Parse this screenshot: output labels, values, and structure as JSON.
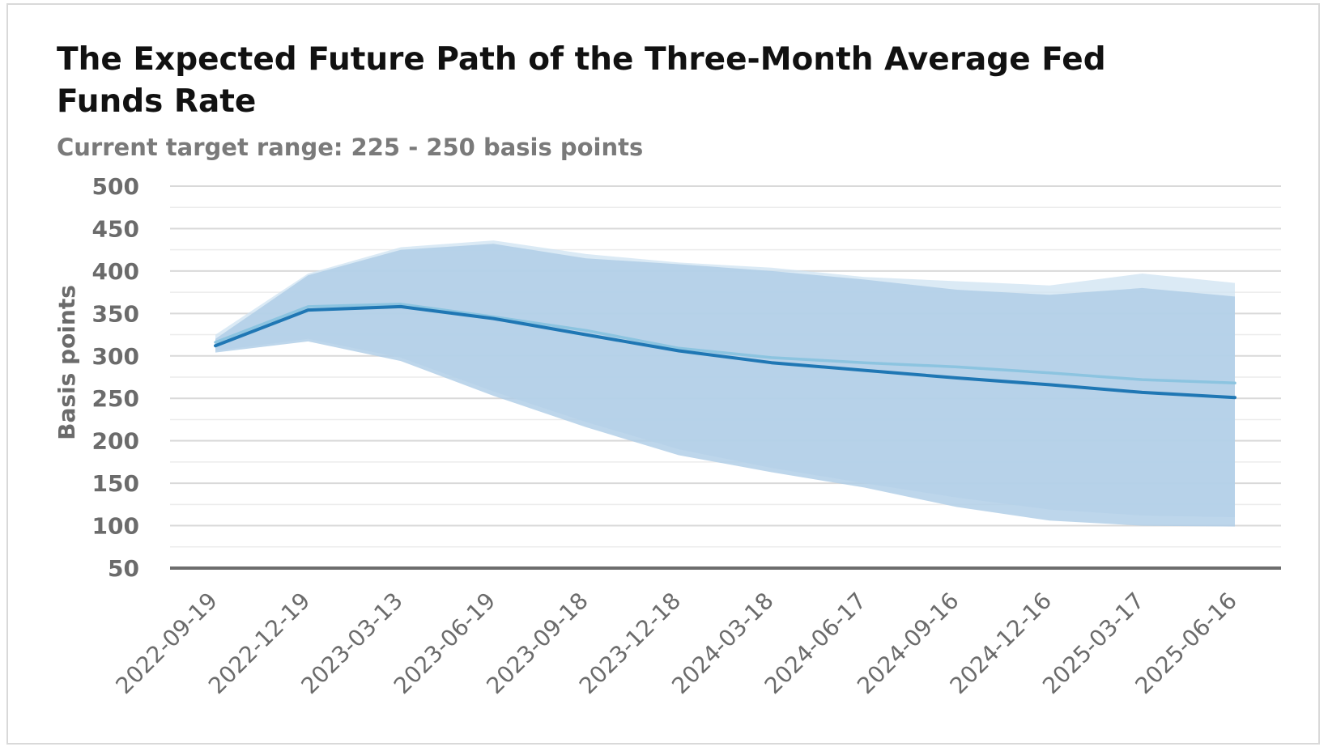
{
  "chart_data": {
    "type": "line",
    "title": "The Expected Future Path of the Three-Month Average Fed Funds Rate",
    "subtitle": "Current target range: 225 - 250 basis points",
    "ylabel": "Basis points",
    "xlabel": "",
    "ylim": [
      50,
      500
    ],
    "yticks": [
      50,
      100,
      150,
      200,
      250,
      300,
      350,
      400,
      450,
      500
    ],
    "grid": true,
    "legend": "none",
    "x": [
      "2022-09-19",
      "2022-12-19",
      "2023-03-13",
      "2023-06-19",
      "2023-09-18",
      "2023-12-18",
      "2024-03-18",
      "2024-06-17",
      "2024-09-16",
      "2024-12-16",
      "2025-03-17",
      "2025-06-16"
    ],
    "series": [
      {
        "values": [
          312,
          354,
          358,
          344,
          325,
          306,
          292,
          283,
          274,
          266,
          257,
          251
        ],
        "band_low": [
          304,
          317,
          294,
          253,
          216,
          183,
          163,
          145,
          122,
          106,
          100,
          99
        ],
        "band_high": [
          320,
          395,
          425,
          432,
          415,
          408,
          400,
          390,
          378,
          372,
          380,
          370
        ],
        "color": "#1f77b4"
      },
      {
        "values": [
          316,
          358,
          361,
          346,
          330,
          309,
          298,
          292,
          287,
          280,
          272,
          268
        ],
        "band_low": [
          306,
          320,
          298,
          258,
          222,
          190,
          168,
          150,
          133,
          119,
          112,
          110
        ],
        "band_high": [
          325,
          397,
          428,
          436,
          420,
          410,
          404,
          393,
          388,
          383,
          397,
          386
        ],
        "color": "#8cc4e0"
      }
    ]
  }
}
